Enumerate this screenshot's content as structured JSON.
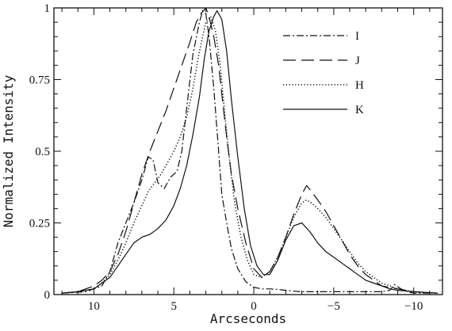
{
  "chart_data": {
    "type": "line",
    "title": "",
    "xlabel": "Arcseconds",
    "ylabel": "Normalized Intensity",
    "xlim": [
      12.5,
      -11.8
    ],
    "ylim": [
      0,
      1
    ],
    "x_reversed": true,
    "grid": false,
    "legend_position": "top-right",
    "x_ticks": [
      10,
      5,
      0,
      -5,
      -10
    ],
    "x_tick_labels": [
      "10",
      "5",
      "0",
      "−5",
      "−10"
    ],
    "y_ticks": [
      0,
      0.25,
      0.5,
      0.75,
      1
    ],
    "y_tick_labels": [
      "0",
      "0.25",
      "0.5",
      "0.75",
      "1"
    ],
    "series": [
      {
        "name": "I",
        "dash": "dashdot",
        "x": [
          12,
          10.5,
          9.5,
          9,
          8.5,
          8,
          7.5,
          7,
          6.6,
          6.3,
          6,
          5.6,
          5.2,
          4.8,
          4.5,
          4.2,
          3.8,
          3.4,
          3.2,
          3,
          2.8,
          2.5,
          2.2,
          2,
          1.7,
          1.4,
          1,
          0.5,
          0,
          -0.5,
          -1,
          -1.5,
          -2,
          -2.5,
          -3,
          -3.5,
          -4,
          -4.5,
          -5,
          -5.5,
          -6,
          -6.5,
          -7,
          -7.5,
          -8,
          -8.5,
          -8.8,
          -9.2,
          -9.6,
          -10,
          -11
        ],
        "y": [
          0.005,
          0.01,
          0.03,
          0.08,
          0.18,
          0.25,
          0.32,
          0.4,
          0.48,
          0.47,
          0.39,
          0.37,
          0.41,
          0.43,
          0.5,
          0.65,
          0.84,
          0.95,
          0.99,
          0.98,
          0.9,
          0.72,
          0.5,
          0.35,
          0.25,
          0.16,
          0.09,
          0.045,
          0.025,
          0.02,
          0.02,
          0.018,
          0.015,
          0.012,
          0.01,
          0.01,
          0.01,
          0.01,
          0.01,
          0.01,
          0.01,
          0.01,
          0.01,
          0.01,
          0.01,
          0.015,
          0.035,
          0.02,
          0.01,
          0.005,
          0.005
        ]
      },
      {
        "name": "J",
        "dash": "longdash",
        "x": [
          12,
          11,
          10,
          9.5,
          9,
          8.5,
          8,
          7.5,
          7,
          6.5,
          6,
          5.5,
          5,
          4.5,
          4,
          3.6,
          3.3,
          3,
          2.8,
          2.5,
          2.2,
          2,
          1.7,
          1.4,
          1,
          0.5,
          0,
          -0.5,
          -1,
          -1.5,
          -2,
          -2.5,
          -3,
          -3.3,
          -3.6,
          -4,
          -4.5,
          -5,
          -5.5,
          -6,
          -6.5,
          -7,
          -7.5,
          -8,
          -9,
          -10,
          -11.5
        ],
        "y": [
          0.005,
          0.01,
          0.03,
          0.05,
          0.08,
          0.14,
          0.22,
          0.32,
          0.42,
          0.5,
          0.57,
          0.64,
          0.72,
          0.8,
          0.88,
          0.95,
          0.98,
          1.0,
          0.97,
          0.9,
          0.8,
          0.7,
          0.55,
          0.42,
          0.3,
          0.18,
          0.09,
          0.06,
          0.08,
          0.13,
          0.2,
          0.28,
          0.35,
          0.38,
          0.36,
          0.33,
          0.29,
          0.24,
          0.19,
          0.14,
          0.1,
          0.07,
          0.05,
          0.03,
          0.02,
          0.01,
          0.005
        ]
      },
      {
        "name": "H",
        "dash": "dotted",
        "x": [
          12,
          11,
          10,
          9.5,
          9,
          8.5,
          8,
          7.5,
          7,
          6.6,
          6.2,
          5.8,
          5.4,
          5,
          4.6,
          4.2,
          3.8,
          3.5,
          3.2,
          3,
          2.7,
          2.4,
          2.1,
          1.8,
          1.5,
          1.2,
          0.8,
          0.4,
          0,
          -0.5,
          -1,
          -1.5,
          -2,
          -2.5,
          -3,
          -3.3,
          -3.6,
          -4,
          -4.5,
          -5,
          -5.5,
          -6,
          -6.5,
          -7,
          -7.5,
          -8,
          -8.5,
          -9,
          -10,
          -11.5
        ],
        "y": [
          0.005,
          0.01,
          0.02,
          0.04,
          0.07,
          0.12,
          0.18,
          0.25,
          0.31,
          0.36,
          0.39,
          0.42,
          0.46,
          0.5,
          0.55,
          0.62,
          0.72,
          0.82,
          0.9,
          0.95,
          0.97,
          0.92,
          0.8,
          0.62,
          0.46,
          0.32,
          0.2,
          0.12,
          0.07,
          0.06,
          0.08,
          0.13,
          0.2,
          0.27,
          0.32,
          0.33,
          0.32,
          0.3,
          0.27,
          0.23,
          0.19,
          0.15,
          0.11,
          0.08,
          0.06,
          0.04,
          0.03,
          0.02,
          0.01,
          0.005
        ]
      },
      {
        "name": "K",
        "dash": "solid",
        "x": [
          12,
          11,
          10,
          9.5,
          9,
          8.5,
          8,
          7.5,
          7,
          6.5,
          6,
          5.5,
          5,
          4.6,
          4.2,
          3.8,
          3.4,
          3.1,
          2.8,
          2.5,
          2.3,
          2,
          1.7,
          1.4,
          1,
          0.6,
          0.2,
          -0.2,
          -0.6,
          -1,
          -1.5,
          -2,
          -2.5,
          -3,
          -3.5,
          -4,
          -4.5,
          -5,
          -5.5,
          -6,
          -6.5,
          -7,
          -7.5,
          -8,
          -8.5,
          -9,
          -10,
          -11.5
        ],
        "y": [
          0.005,
          0.01,
          0.02,
          0.04,
          0.06,
          0.1,
          0.14,
          0.18,
          0.2,
          0.21,
          0.23,
          0.26,
          0.31,
          0.37,
          0.45,
          0.56,
          0.69,
          0.82,
          0.92,
          0.97,
          0.99,
          0.96,
          0.85,
          0.68,
          0.48,
          0.3,
          0.17,
          0.1,
          0.07,
          0.07,
          0.12,
          0.19,
          0.24,
          0.25,
          0.22,
          0.18,
          0.15,
          0.13,
          0.11,
          0.09,
          0.07,
          0.05,
          0.04,
          0.03,
          0.02,
          0.015,
          0.01,
          0.005
        ]
      }
    ]
  }
}
